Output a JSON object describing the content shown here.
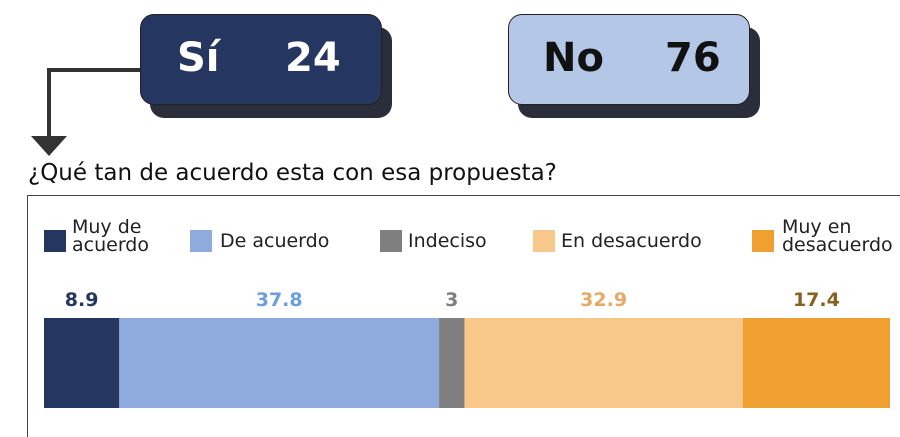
{
  "cards": [
    {
      "label": "Sí",
      "value": 24
    },
    {
      "label": "No",
      "value": 76
    }
  ],
  "question": "¿Qué tan de acuerdo esta con esa propuesta?",
  "chart_data": {
    "type": "stacked_bar",
    "xlim": [
      0,
      100
    ],
    "series": [
      {
        "name": "Muy de acuerdo",
        "color": "#253660",
        "label_color": "#253660",
        "values": [
          8.9
        ]
      },
      {
        "name": "De acuerdo",
        "color": "#8faadc",
        "label_color": "#6a9fe0",
        "values": [
          37.8
        ]
      },
      {
        "name": "Indeciso",
        "color": "#7f7f7f",
        "label_color": "#7f7f7f",
        "values": [
          3
        ]
      },
      {
        "name": "En desacuerdo",
        "color": "#f8c88a",
        "label_color": "#e8a866",
        "values": [
          32.9
        ]
      },
      {
        "name": "Muy en desacuerdo",
        "color": "#f0a030",
        "label_color": "#8a6020",
        "values": [
          17.4
        ]
      }
    ]
  }
}
